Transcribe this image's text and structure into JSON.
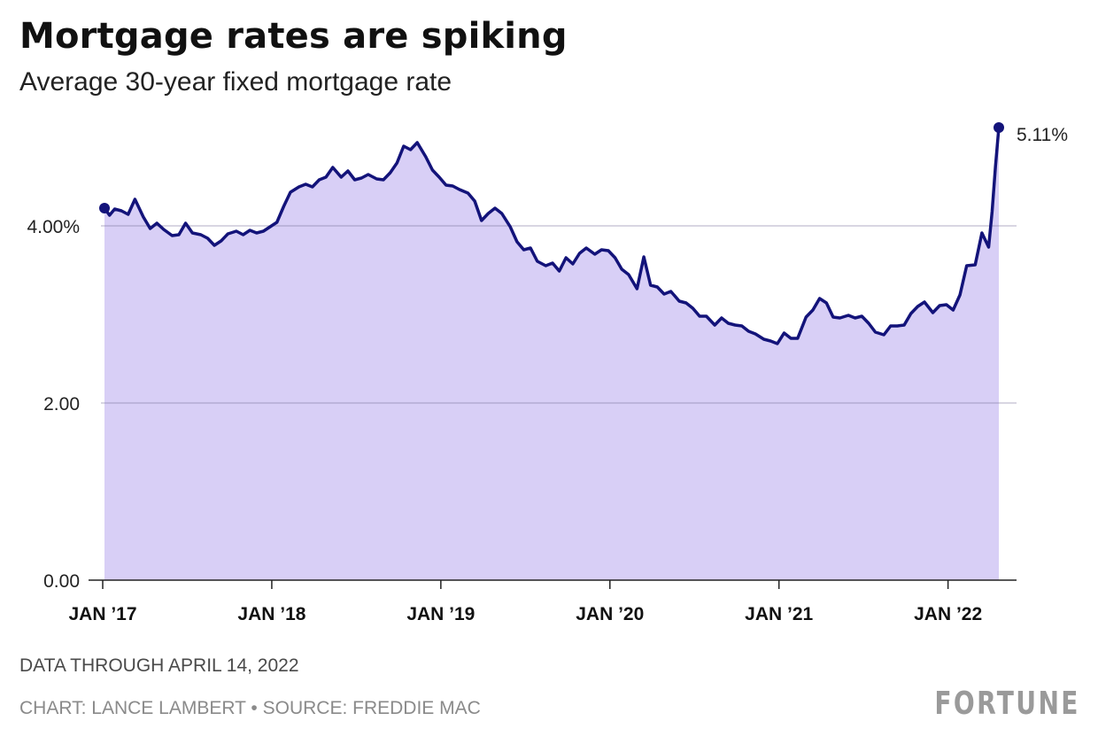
{
  "chart_data": {
    "type": "area",
    "title": "Mortgage rates are spiking",
    "subtitle": "Average 30-year fixed mortgage rate",
    "ylabel": "",
    "xlabel": "",
    "ylim": [
      0,
      5.11
    ],
    "xlim": [
      2017.0,
      2022.29
    ],
    "y_ticks": [
      {
        "value": 0,
        "label": "0.00"
      },
      {
        "value": 2,
        "label": "2.00"
      },
      {
        "value": 4,
        "label": "4.00%"
      }
    ],
    "x_ticks": [
      {
        "value": 2017,
        "label": "JAN ’17"
      },
      {
        "value": 2018,
        "label": "JAN ’18"
      },
      {
        "value": 2019,
        "label": "JAN ’19"
      },
      {
        "value": 2020,
        "label": "JAN ’20"
      },
      {
        "value": 2021,
        "label": "JAN ’21"
      },
      {
        "value": 2022,
        "label": "JAN ’22"
      }
    ],
    "grid": true,
    "end_label": "5.11%",
    "series": [
      {
        "name": "Average 30-year fixed mortgage rate",
        "color": "#13137a",
        "fill": "#d8cff6",
        "points": [
          [
            2017.0,
            4.2
          ],
          [
            2017.03,
            4.12
          ],
          [
            2017.06,
            4.19
          ],
          [
            2017.1,
            4.17
          ],
          [
            2017.14,
            4.13
          ],
          [
            2017.18,
            4.3
          ],
          [
            2017.23,
            4.1
          ],
          [
            2017.27,
            3.97
          ],
          [
            2017.31,
            4.03
          ],
          [
            2017.35,
            3.96
          ],
          [
            2017.4,
            3.89
          ],
          [
            2017.44,
            3.9
          ],
          [
            2017.48,
            4.03
          ],
          [
            2017.52,
            3.92
          ],
          [
            2017.57,
            3.9
          ],
          [
            2017.61,
            3.86
          ],
          [
            2017.65,
            3.78
          ],
          [
            2017.69,
            3.83
          ],
          [
            2017.73,
            3.91
          ],
          [
            2017.78,
            3.94
          ],
          [
            2017.82,
            3.9
          ],
          [
            2017.86,
            3.95
          ],
          [
            2017.9,
            3.92
          ],
          [
            2017.94,
            3.94
          ],
          [
            2017.98,
            3.99
          ],
          [
            2018.02,
            4.04
          ],
          [
            2018.06,
            4.22
          ],
          [
            2018.1,
            4.38
          ],
          [
            2018.15,
            4.44
          ],
          [
            2018.19,
            4.47
          ],
          [
            2018.23,
            4.44
          ],
          [
            2018.27,
            4.52
          ],
          [
            2018.31,
            4.55
          ],
          [
            2018.35,
            4.66
          ],
          [
            2018.4,
            4.55
          ],
          [
            2018.44,
            4.62
          ],
          [
            2018.48,
            4.52
          ],
          [
            2018.52,
            4.54
          ],
          [
            2018.56,
            4.58
          ],
          [
            2018.61,
            4.53
          ],
          [
            2018.65,
            4.52
          ],
          [
            2018.69,
            4.6
          ],
          [
            2018.73,
            4.71
          ],
          [
            2018.77,
            4.9
          ],
          [
            2018.81,
            4.86
          ],
          [
            2018.85,
            4.94
          ],
          [
            2018.9,
            4.78
          ],
          [
            2018.94,
            4.63
          ],
          [
            2018.98,
            4.55
          ],
          [
            2019.02,
            4.46
          ],
          [
            2019.06,
            4.45
          ],
          [
            2019.1,
            4.41
          ],
          [
            2019.15,
            4.37
          ],
          [
            2019.19,
            4.28
          ],
          [
            2019.23,
            4.06
          ],
          [
            2019.27,
            4.14
          ],
          [
            2019.31,
            4.2
          ],
          [
            2019.35,
            4.14
          ],
          [
            2019.4,
            3.99
          ],
          [
            2019.44,
            3.82
          ],
          [
            2019.48,
            3.73
          ],
          [
            2019.52,
            3.75
          ],
          [
            2019.56,
            3.6
          ],
          [
            2019.61,
            3.55
          ],
          [
            2019.65,
            3.58
          ],
          [
            2019.69,
            3.49
          ],
          [
            2019.73,
            3.64
          ],
          [
            2019.77,
            3.57
          ],
          [
            2019.81,
            3.69
          ],
          [
            2019.85,
            3.75
          ],
          [
            2019.9,
            3.68
          ],
          [
            2019.94,
            3.73
          ],
          [
            2019.98,
            3.72
          ],
          [
            2020.02,
            3.64
          ],
          [
            2020.06,
            3.51
          ],
          [
            2020.1,
            3.45
          ],
          [
            2020.15,
            3.29
          ],
          [
            2020.19,
            3.65
          ],
          [
            2020.23,
            3.33
          ],
          [
            2020.27,
            3.31
          ],
          [
            2020.31,
            3.23
          ],
          [
            2020.35,
            3.26
          ],
          [
            2020.4,
            3.15
          ],
          [
            2020.44,
            3.13
          ],
          [
            2020.48,
            3.07
          ],
          [
            2020.52,
            2.98
          ],
          [
            2020.56,
            2.98
          ],
          [
            2020.61,
            2.88
          ],
          [
            2020.65,
            2.96
          ],
          [
            2020.69,
            2.9
          ],
          [
            2020.73,
            2.88
          ],
          [
            2020.77,
            2.87
          ],
          [
            2020.81,
            2.81
          ],
          [
            2020.85,
            2.78
          ],
          [
            2020.9,
            2.72
          ],
          [
            2020.94,
            2.7
          ],
          [
            2020.98,
            2.67
          ],
          [
            2021.02,
            2.79
          ],
          [
            2021.06,
            2.73
          ],
          [
            2021.1,
            2.73
          ],
          [
            2021.15,
            2.97
          ],
          [
            2021.19,
            3.05
          ],
          [
            2021.23,
            3.18
          ],
          [
            2021.27,
            3.13
          ],
          [
            2021.31,
            2.97
          ],
          [
            2021.35,
            2.96
          ],
          [
            2021.4,
            2.99
          ],
          [
            2021.44,
            2.96
          ],
          [
            2021.48,
            2.98
          ],
          [
            2021.52,
            2.9
          ],
          [
            2021.56,
            2.8
          ],
          [
            2021.61,
            2.77
          ],
          [
            2021.65,
            2.87
          ],
          [
            2021.69,
            2.87
          ],
          [
            2021.73,
            2.88
          ],
          [
            2021.77,
            3.01
          ],
          [
            2021.81,
            3.09
          ],
          [
            2021.85,
            3.14
          ],
          [
            2021.9,
            3.02
          ],
          [
            2021.94,
            3.1
          ],
          [
            2021.98,
            3.11
          ],
          [
            2022.02,
            3.05
          ],
          [
            2022.06,
            3.22
          ],
          [
            2022.1,
            3.55
          ],
          [
            2022.15,
            3.56
          ],
          [
            2022.19,
            3.92
          ],
          [
            2022.23,
            3.76
          ],
          [
            2022.25,
            4.16
          ],
          [
            2022.27,
            4.67
          ],
          [
            2022.29,
            5.11
          ]
        ]
      }
    ]
  },
  "footer": {
    "note": "DATA THROUGH APRIL 14, 2022",
    "credit": "CHART: LANCE LAMBERT • SOURCE: FREDDIE MAC",
    "logo": "FORTUNE"
  }
}
